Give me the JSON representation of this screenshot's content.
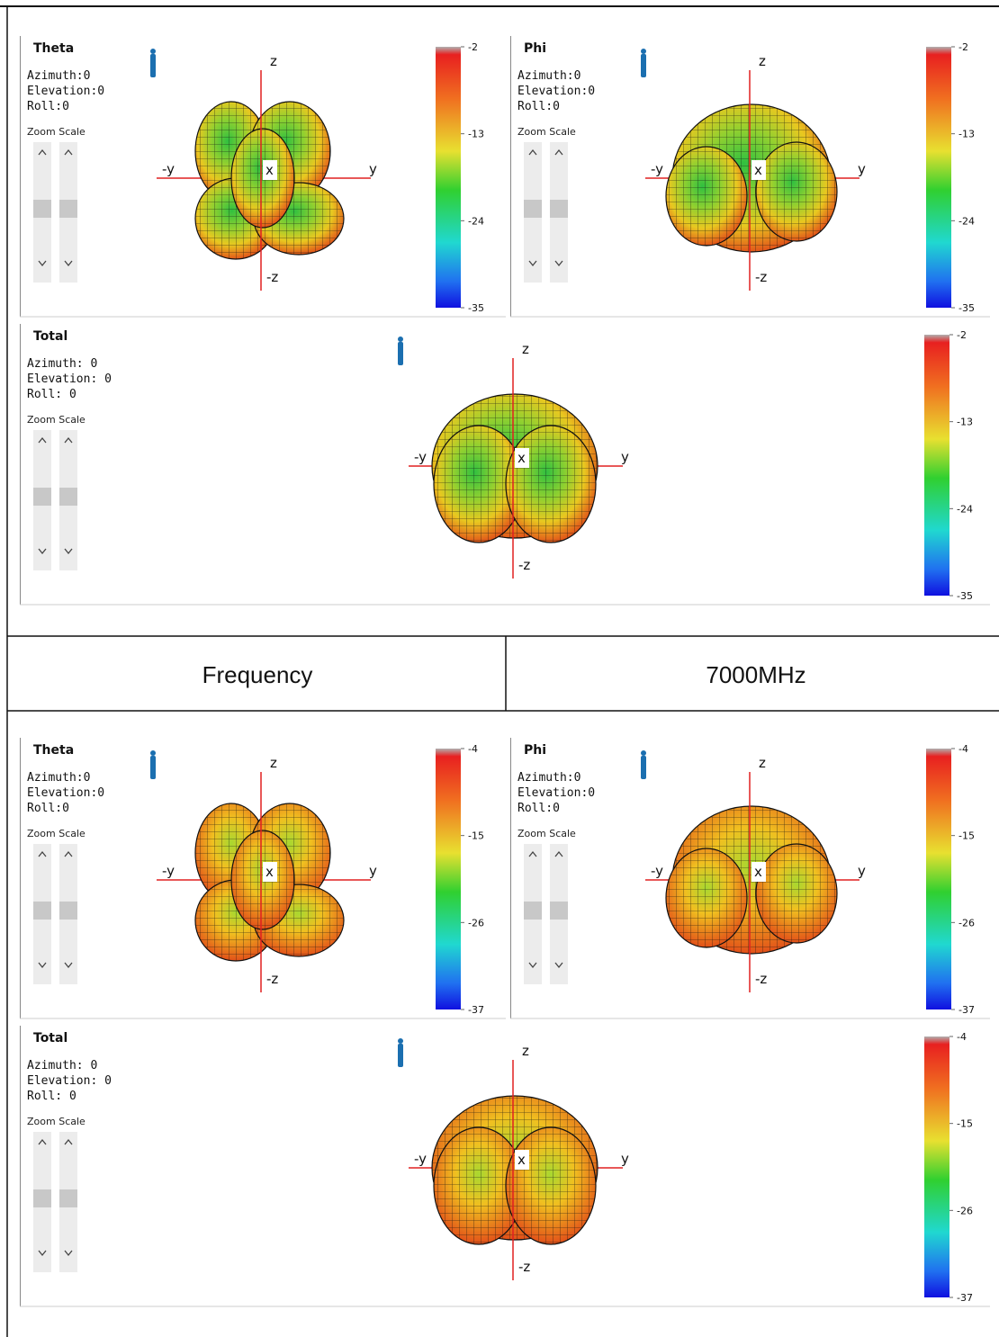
{
  "axes": {
    "z": "z",
    "neg_z": "-z",
    "y": "y",
    "neg_y": "-y",
    "x": "x"
  },
  "zoom_label": "Zoom Scale",
  "sections": [
    {
      "panels": [
        {
          "title": "Theta",
          "lines": [
            "Azimuth:0",
            "Elevation:0",
            "Roll:0"
          ],
          "colorbar_ticks": [
            -2,
            -13,
            -24,
            -35
          ]
        },
        {
          "title": "Phi",
          "lines": [
            "Azimuth:0",
            "Elevation:0",
            "Roll:0"
          ],
          "colorbar_ticks": [
            -2,
            -13,
            -24,
            -35
          ]
        },
        {
          "title": "Total",
          "lines": [
            "Azimuth: 0",
            "Elevation: 0",
            "Roll: 0"
          ],
          "colorbar_ticks": [
            -2,
            -13,
            -24,
            -35
          ]
        }
      ]
    },
    {
      "panels": [
        {
          "title": "Theta",
          "lines": [
            "Azimuth:0",
            "Elevation:0",
            "Roll:0"
          ],
          "colorbar_ticks": [
            -4,
            -15,
            -26,
            -37
          ]
        },
        {
          "title": "Phi",
          "lines": [
            "Azimuth:0",
            "Elevation:0",
            "Roll:0"
          ],
          "colorbar_ticks": [
            -4,
            -15,
            -26,
            -37
          ]
        },
        {
          "title": "Total",
          "lines": [
            "Azimuth: 0",
            "Elevation: 0",
            "Roll: 0"
          ],
          "colorbar_ticks": [
            -4,
            -15,
            -26,
            -37
          ]
        }
      ]
    }
  ],
  "frequency_row": {
    "label": "Frequency",
    "value": "7000MHz"
  }
}
